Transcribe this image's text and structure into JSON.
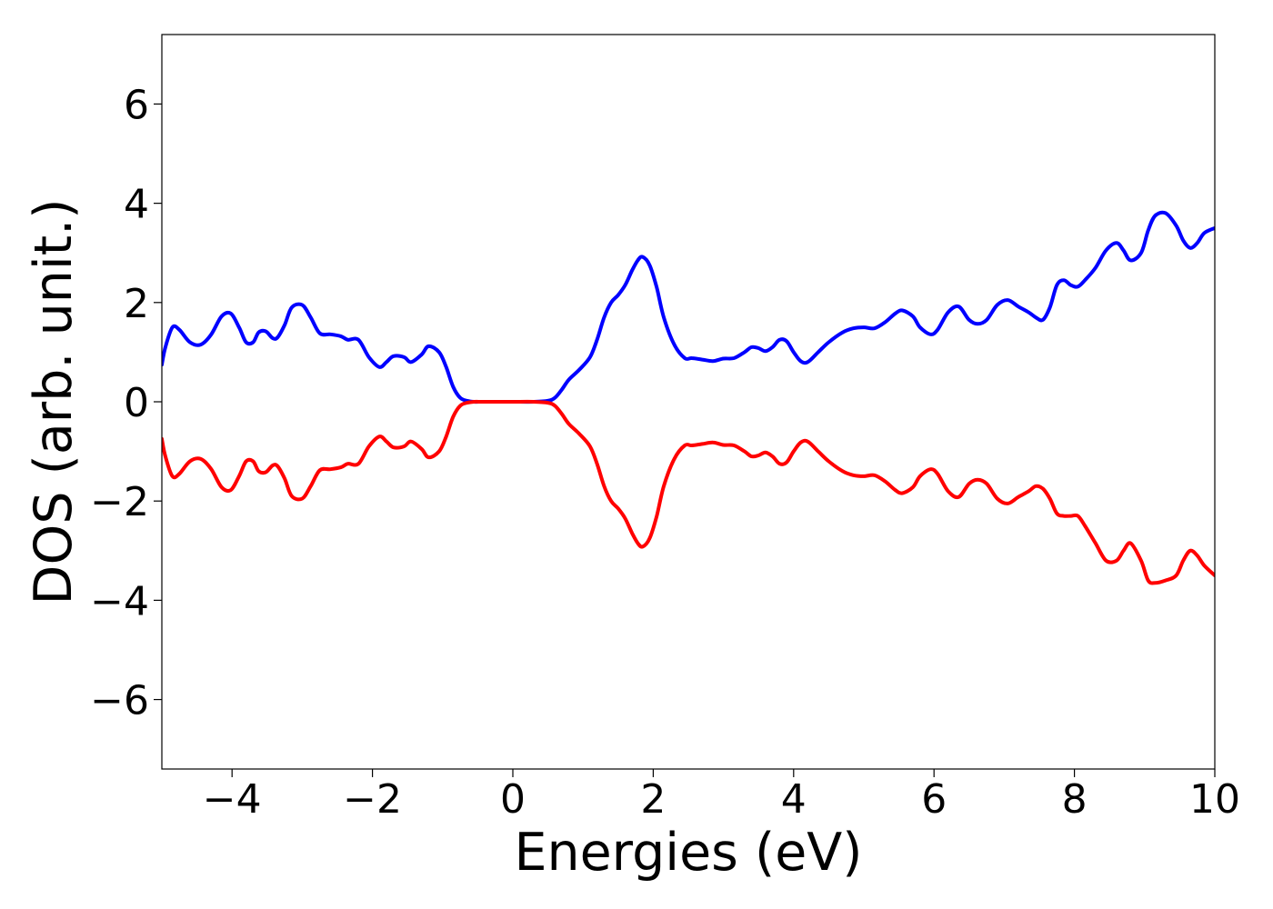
{
  "chart_data": {
    "type": "line",
    "title": "",
    "xlabel": "Energies (eV)",
    "ylabel": "DOS (arb. unit.)",
    "xlim": [
      -5,
      10
    ],
    "ylim": [
      -7.4,
      7.4
    ],
    "x_ticks": [
      -4,
      -2,
      0,
      2,
      4,
      6,
      8,
      10
    ],
    "y_ticks": [
      -6,
      -4,
      -2,
      0,
      2,
      4,
      6
    ],
    "x_tick_labels": [
      "−4",
      "−2",
      "0",
      "2",
      "4",
      "6",
      "8",
      "10"
    ],
    "y_tick_labels": [
      "−6",
      "−4",
      "−2",
      "0",
      "2",
      "4",
      "6"
    ],
    "grid": false,
    "legend": "none",
    "series": [
      {
        "color": "#0000ff",
        "x": [
          -5.0,
          -4.95,
          -4.85,
          -4.75,
          -4.6,
          -4.45,
          -4.3,
          -4.15,
          -4.02,
          -3.9,
          -3.8,
          -3.7,
          -3.62,
          -3.52,
          -3.42,
          -3.35,
          -3.25,
          -3.15,
          -3.0,
          -2.88,
          -2.75,
          -2.6,
          -2.45,
          -2.35,
          -2.2,
          -2.05,
          -1.9,
          -1.8,
          -1.7,
          -1.55,
          -1.45,
          -1.3,
          -1.2,
          -1.05,
          -0.95,
          -0.85,
          -0.75,
          -0.65,
          -0.55,
          -0.45,
          -0.3,
          0.0,
          0.3,
          0.5,
          0.6,
          0.7,
          0.8,
          0.95,
          1.1,
          1.2,
          1.3,
          1.4,
          1.5,
          1.6,
          1.7,
          1.78,
          1.85,
          1.95,
          2.05,
          2.15,
          2.3,
          2.45,
          2.55,
          2.7,
          2.85,
          3.0,
          3.15,
          3.3,
          3.4,
          3.5,
          3.6,
          3.7,
          3.8,
          3.9,
          4.0,
          4.1,
          4.2,
          4.35,
          4.5,
          4.7,
          4.85,
          5.0,
          5.15,
          5.3,
          5.45,
          5.55,
          5.7,
          5.8,
          5.95,
          6.05,
          6.2,
          6.35,
          6.5,
          6.62,
          6.75,
          6.9,
          7.05,
          7.2,
          7.35,
          7.45,
          7.55,
          7.65,
          7.75,
          7.85,
          7.95,
          8.05,
          8.15,
          8.3,
          8.45,
          8.6,
          8.7,
          8.8,
          8.95,
          9.05,
          9.15,
          9.3,
          9.45,
          9.55,
          9.65,
          9.75,
          9.85,
          10.0
        ],
        "y": [
          0.75,
          1.1,
          1.5,
          1.45,
          1.2,
          1.15,
          1.35,
          1.72,
          1.78,
          1.5,
          1.2,
          1.2,
          1.4,
          1.42,
          1.28,
          1.3,
          1.55,
          1.9,
          1.95,
          1.7,
          1.38,
          1.36,
          1.32,
          1.25,
          1.25,
          0.9,
          0.7,
          0.8,
          0.92,
          0.9,
          0.8,
          0.95,
          1.12,
          1.0,
          0.7,
          0.3,
          0.08,
          0.02,
          0.0,
          0.0,
          0.0,
          0.0,
          0.0,
          0.02,
          0.08,
          0.25,
          0.45,
          0.65,
          0.9,
          1.25,
          1.7,
          2.0,
          2.15,
          2.35,
          2.65,
          2.85,
          2.92,
          2.75,
          2.3,
          1.7,
          1.15,
          0.88,
          0.88,
          0.85,
          0.82,
          0.87,
          0.88,
          1.0,
          1.1,
          1.08,
          1.02,
          1.1,
          1.25,
          1.22,
          1.0,
          0.82,
          0.8,
          1.0,
          1.2,
          1.4,
          1.48,
          1.5,
          1.48,
          1.6,
          1.78,
          1.84,
          1.72,
          1.5,
          1.36,
          1.45,
          1.8,
          1.92,
          1.65,
          1.57,
          1.65,
          1.95,
          2.05,
          1.92,
          1.8,
          1.7,
          1.65,
          1.9,
          2.35,
          2.45,
          2.35,
          2.32,
          2.45,
          2.7,
          3.05,
          3.2,
          3.05,
          2.85,
          3.0,
          3.45,
          3.75,
          3.8,
          3.55,
          3.25,
          3.1,
          3.2,
          3.4,
          3.5
        ]
      },
      {
        "color": "#ff0000",
        "x": [
          -5.0,
          -4.95,
          -4.85,
          -4.75,
          -4.6,
          -4.45,
          -4.3,
          -4.15,
          -4.02,
          -3.9,
          -3.8,
          -3.7,
          -3.62,
          -3.52,
          -3.42,
          -3.35,
          -3.25,
          -3.15,
          -3.0,
          -2.88,
          -2.75,
          -2.6,
          -2.45,
          -2.35,
          -2.2,
          -2.05,
          -1.9,
          -1.8,
          -1.7,
          -1.55,
          -1.45,
          -1.3,
          -1.2,
          -1.05,
          -0.95,
          -0.85,
          -0.75,
          -0.65,
          -0.55,
          -0.45,
          -0.3,
          0.0,
          0.3,
          0.5,
          0.6,
          0.7,
          0.8,
          0.95,
          1.1,
          1.2,
          1.3,
          1.4,
          1.5,
          1.6,
          1.7,
          1.78,
          1.85,
          1.95,
          2.05,
          2.15,
          2.3,
          2.45,
          2.55,
          2.7,
          2.85,
          3.0,
          3.15,
          3.3,
          3.4,
          3.5,
          3.6,
          3.7,
          3.8,
          3.9,
          4.0,
          4.1,
          4.2,
          4.35,
          4.5,
          4.7,
          4.85,
          5.0,
          5.15,
          5.3,
          5.45,
          5.55,
          5.7,
          5.8,
          5.95,
          6.05,
          6.2,
          6.35,
          6.5,
          6.62,
          6.75,
          6.9,
          7.05,
          7.2,
          7.35,
          7.45,
          7.55,
          7.65,
          7.75,
          7.85,
          7.95,
          8.05,
          8.15,
          8.3,
          8.45,
          8.6,
          8.7,
          8.8,
          8.95,
          9.05,
          9.15,
          9.3,
          9.45,
          9.55,
          9.65,
          9.75,
          9.85,
          10.0
        ],
        "y": [
          -0.75,
          -1.1,
          -1.5,
          -1.45,
          -1.2,
          -1.15,
          -1.35,
          -1.72,
          -1.78,
          -1.5,
          -1.2,
          -1.2,
          -1.4,
          -1.42,
          -1.28,
          -1.3,
          -1.55,
          -1.9,
          -1.95,
          -1.7,
          -1.38,
          -1.36,
          -1.32,
          -1.25,
          -1.25,
          -0.9,
          -0.7,
          -0.8,
          -0.92,
          -0.9,
          -0.8,
          -0.95,
          -1.12,
          -1.0,
          -0.7,
          -0.3,
          -0.08,
          -0.02,
          0.0,
          0.0,
          0.0,
          0.0,
          0.0,
          -0.02,
          -0.08,
          -0.25,
          -0.45,
          -0.65,
          -0.9,
          -1.25,
          -1.7,
          -2.0,
          -2.15,
          -2.35,
          -2.65,
          -2.85,
          -2.92,
          -2.75,
          -2.3,
          -1.7,
          -1.15,
          -0.88,
          -0.88,
          -0.85,
          -0.82,
          -0.87,
          -0.88,
          -1.0,
          -1.1,
          -1.08,
          -1.02,
          -1.1,
          -1.25,
          -1.22,
          -1.0,
          -0.82,
          -0.8,
          -1.0,
          -1.2,
          -1.4,
          -1.48,
          -1.5,
          -1.48,
          -1.6,
          -1.78,
          -1.84,
          -1.72,
          -1.5,
          -1.36,
          -1.45,
          -1.8,
          -1.92,
          -1.65,
          -1.57,
          -1.65,
          -1.95,
          -2.05,
          -1.92,
          -1.8,
          -1.7,
          -1.75,
          -1.95,
          -2.25,
          -2.3,
          -2.3,
          -2.3,
          -2.5,
          -2.85,
          -3.2,
          -3.2,
          -3.0,
          -2.85,
          -3.2,
          -3.6,
          -3.65,
          -3.6,
          -3.5,
          -3.2,
          -3.0,
          -3.1,
          -3.3,
          -3.5
        ]
      }
    ]
  }
}
